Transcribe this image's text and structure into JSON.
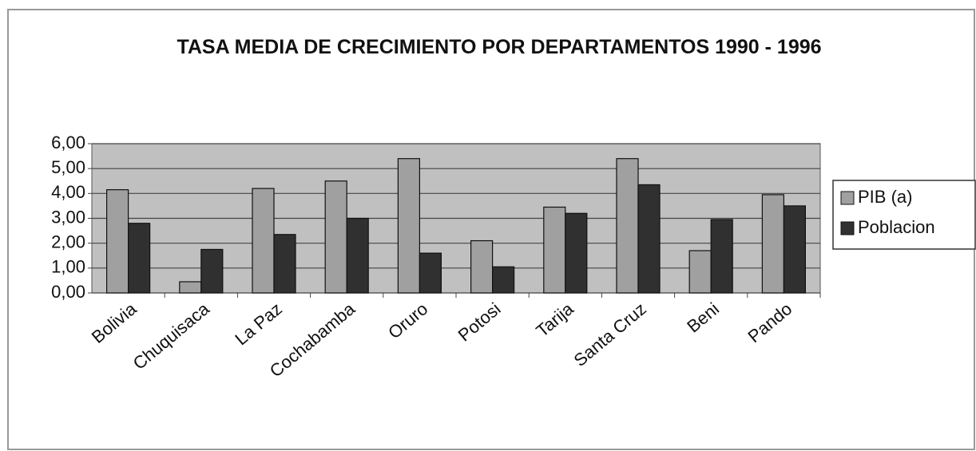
{
  "chart_data": {
    "type": "bar",
    "title": "TASA MEDIA DE CRECIMIENTO POR DEPARTAMENTOS 1990 - 1996",
    "categories": [
      "Bolivia",
      "Chuquisaca",
      "La Paz",
      "Cochabamba",
      "Oruro",
      "Potosi",
      "Tarija",
      "Santa Cruz",
      "Beni",
      "Pando"
    ],
    "series": [
      {
        "name": "PIB (a)",
        "color": "#a0a0a0",
        "values": [
          4.15,
          0.45,
          4.2,
          4.5,
          5.4,
          2.1,
          3.45,
          5.4,
          1.7,
          3.95
        ]
      },
      {
        "name": "Poblacion",
        "color": "#303030",
        "values": [
          2.8,
          1.75,
          2.35,
          3.0,
          1.6,
          1.05,
          3.2,
          4.35,
          2.95,
          3.5
        ]
      }
    ],
    "ylim": [
      0,
      6
    ],
    "yticks": [
      {
        "value": 0,
        "label": "0,00"
      },
      {
        "value": 1,
        "label": "1,00"
      },
      {
        "value": 2,
        "label": "2,00"
      },
      {
        "value": 3,
        "label": "3,00"
      },
      {
        "value": 4,
        "label": "4,00"
      },
      {
        "value": 5,
        "label": "5,00"
      },
      {
        "value": 6,
        "label": "6,00"
      }
    ],
    "grid": true,
    "legend": "right"
  }
}
